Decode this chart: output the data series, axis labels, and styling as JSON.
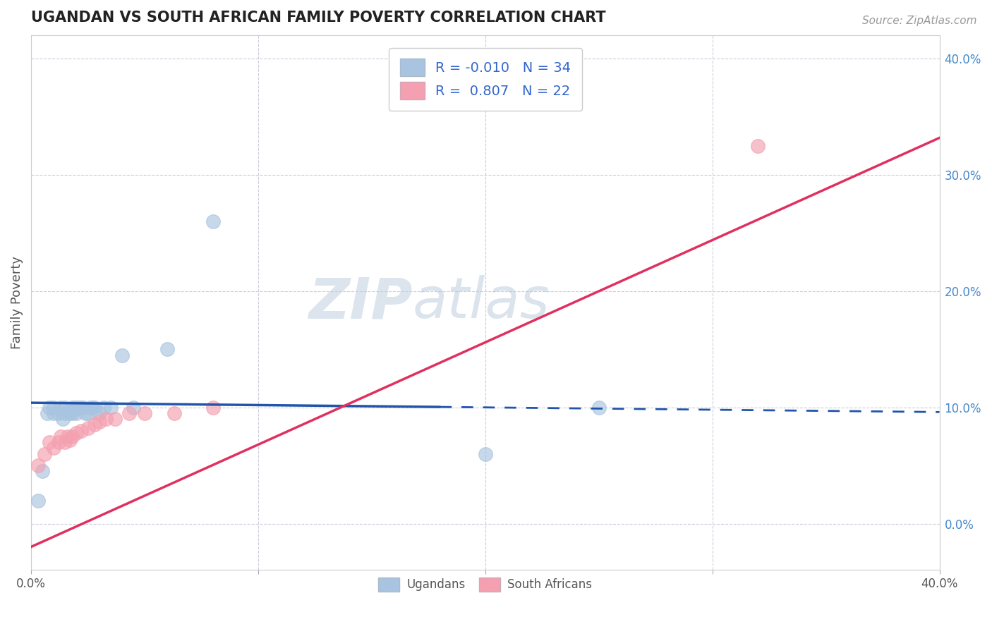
{
  "title": "UGANDAN VS SOUTH AFRICAN FAMILY POVERTY CORRELATION CHART",
  "source": "Source: ZipAtlas.com",
  "ylabel": "Family Poverty",
  "xlim": [
    0.0,
    0.4
  ],
  "ylim": [
    -0.04,
    0.42
  ],
  "ytick_labels": [
    "0.0%",
    "10.0%",
    "20.0%",
    "30.0%",
    "40.0%"
  ],
  "ytick_values": [
    0.0,
    0.1,
    0.2,
    0.3,
    0.4
  ],
  "xtick_labels": [
    "0.0%",
    "",
    "",
    "",
    "40.0%"
  ],
  "xtick_values": [
    0.0,
    0.1,
    0.2,
    0.3,
    0.4
  ],
  "ugandan_R": -0.01,
  "ugandan_N": 34,
  "sa_R": 0.807,
  "sa_N": 22,
  "ugandan_color": "#a8c4e0",
  "sa_color": "#f4a0b0",
  "ugandan_line_color": "#2255aa",
  "sa_line_color": "#e03060",
  "watermark_zip": "ZIP",
  "watermark_atlas": "atlas",
  "background_color": "#ffffff",
  "grid_color": "#ccccdd",
  "ugandan_x": [
    0.003,
    0.005,
    0.007,
    0.008,
    0.01,
    0.01,
    0.012,
    0.013,
    0.014,
    0.015,
    0.015,
    0.017,
    0.018,
    0.018,
    0.019,
    0.02,
    0.02,
    0.021,
    0.022,
    0.023,
    0.024,
    0.025,
    0.026,
    0.027,
    0.028,
    0.03,
    0.032,
    0.035,
    0.04,
    0.045,
    0.06,
    0.08,
    0.2,
    0.25
  ],
  "ugandan_y": [
    0.02,
    0.045,
    0.095,
    0.1,
    0.095,
    0.1,
    0.095,
    0.1,
    0.09,
    0.095,
    0.1,
    0.095,
    0.095,
    0.1,
    0.1,
    0.1,
    0.095,
    0.1,
    0.1,
    0.1,
    0.095,
    0.095,
    0.1,
    0.1,
    0.1,
    0.095,
    0.1,
    0.1,
    0.145,
    0.1,
    0.15,
    0.26,
    0.06,
    0.1
  ],
  "sa_x": [
    0.003,
    0.006,
    0.008,
    0.01,
    0.012,
    0.013,
    0.015,
    0.016,
    0.017,
    0.018,
    0.02,
    0.022,
    0.025,
    0.028,
    0.03,
    0.033,
    0.037,
    0.043,
    0.05,
    0.063,
    0.08,
    0.32
  ],
  "sa_y": [
    0.05,
    0.06,
    0.07,
    0.065,
    0.07,
    0.075,
    0.07,
    0.075,
    0.072,
    0.075,
    0.078,
    0.08,
    0.082,
    0.085,
    0.088,
    0.09,
    0.09,
    0.095,
    0.095,
    0.095,
    0.1,
    0.325
  ],
  "ug_line_solid_end": 0.18,
  "ug_line_intercept": 0.104,
  "ug_line_slope": -0.02,
  "sa_line_intercept": -0.02,
  "sa_line_slope": 0.88
}
